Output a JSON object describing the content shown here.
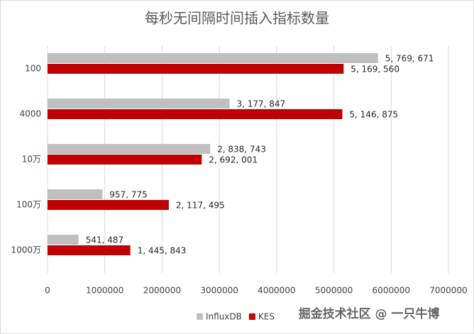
{
  "chart_data": {
    "type": "hbar",
    "title": "每秒无间隔时间插入指标数量",
    "categories": [
      "100",
      "4000",
      "10万",
      "100万",
      "1000万"
    ],
    "series": [
      {
        "name": "InfluxDB",
        "color": "#bfbfbf",
        "values": [
          5769671,
          3177847,
          2838743,
          957775,
          541487
        ],
        "value_labels": [
          "5, 769, 671",
          "3, 177, 847",
          "2, 838, 743",
          "957, 775",
          "541, 487"
        ]
      },
      {
        "name": "KES",
        "color": "#c00000",
        "values": [
          5169560,
          5146875,
          2692001,
          2117495,
          1445843
        ],
        "value_labels": [
          "5, 169, 560",
          "5, 146, 875",
          "2, 692, 001",
          "2, 117, 495",
          "1, 445, 843"
        ]
      }
    ],
    "xlim": [
      0,
      7000000
    ],
    "xticks": [
      0,
      1000000,
      2000000,
      3000000,
      4000000,
      5000000,
      6000000,
      7000000
    ],
    "grid": true,
    "legend": "bottom",
    "watermark": "掘金技术社区 @ 一只牛博"
  }
}
